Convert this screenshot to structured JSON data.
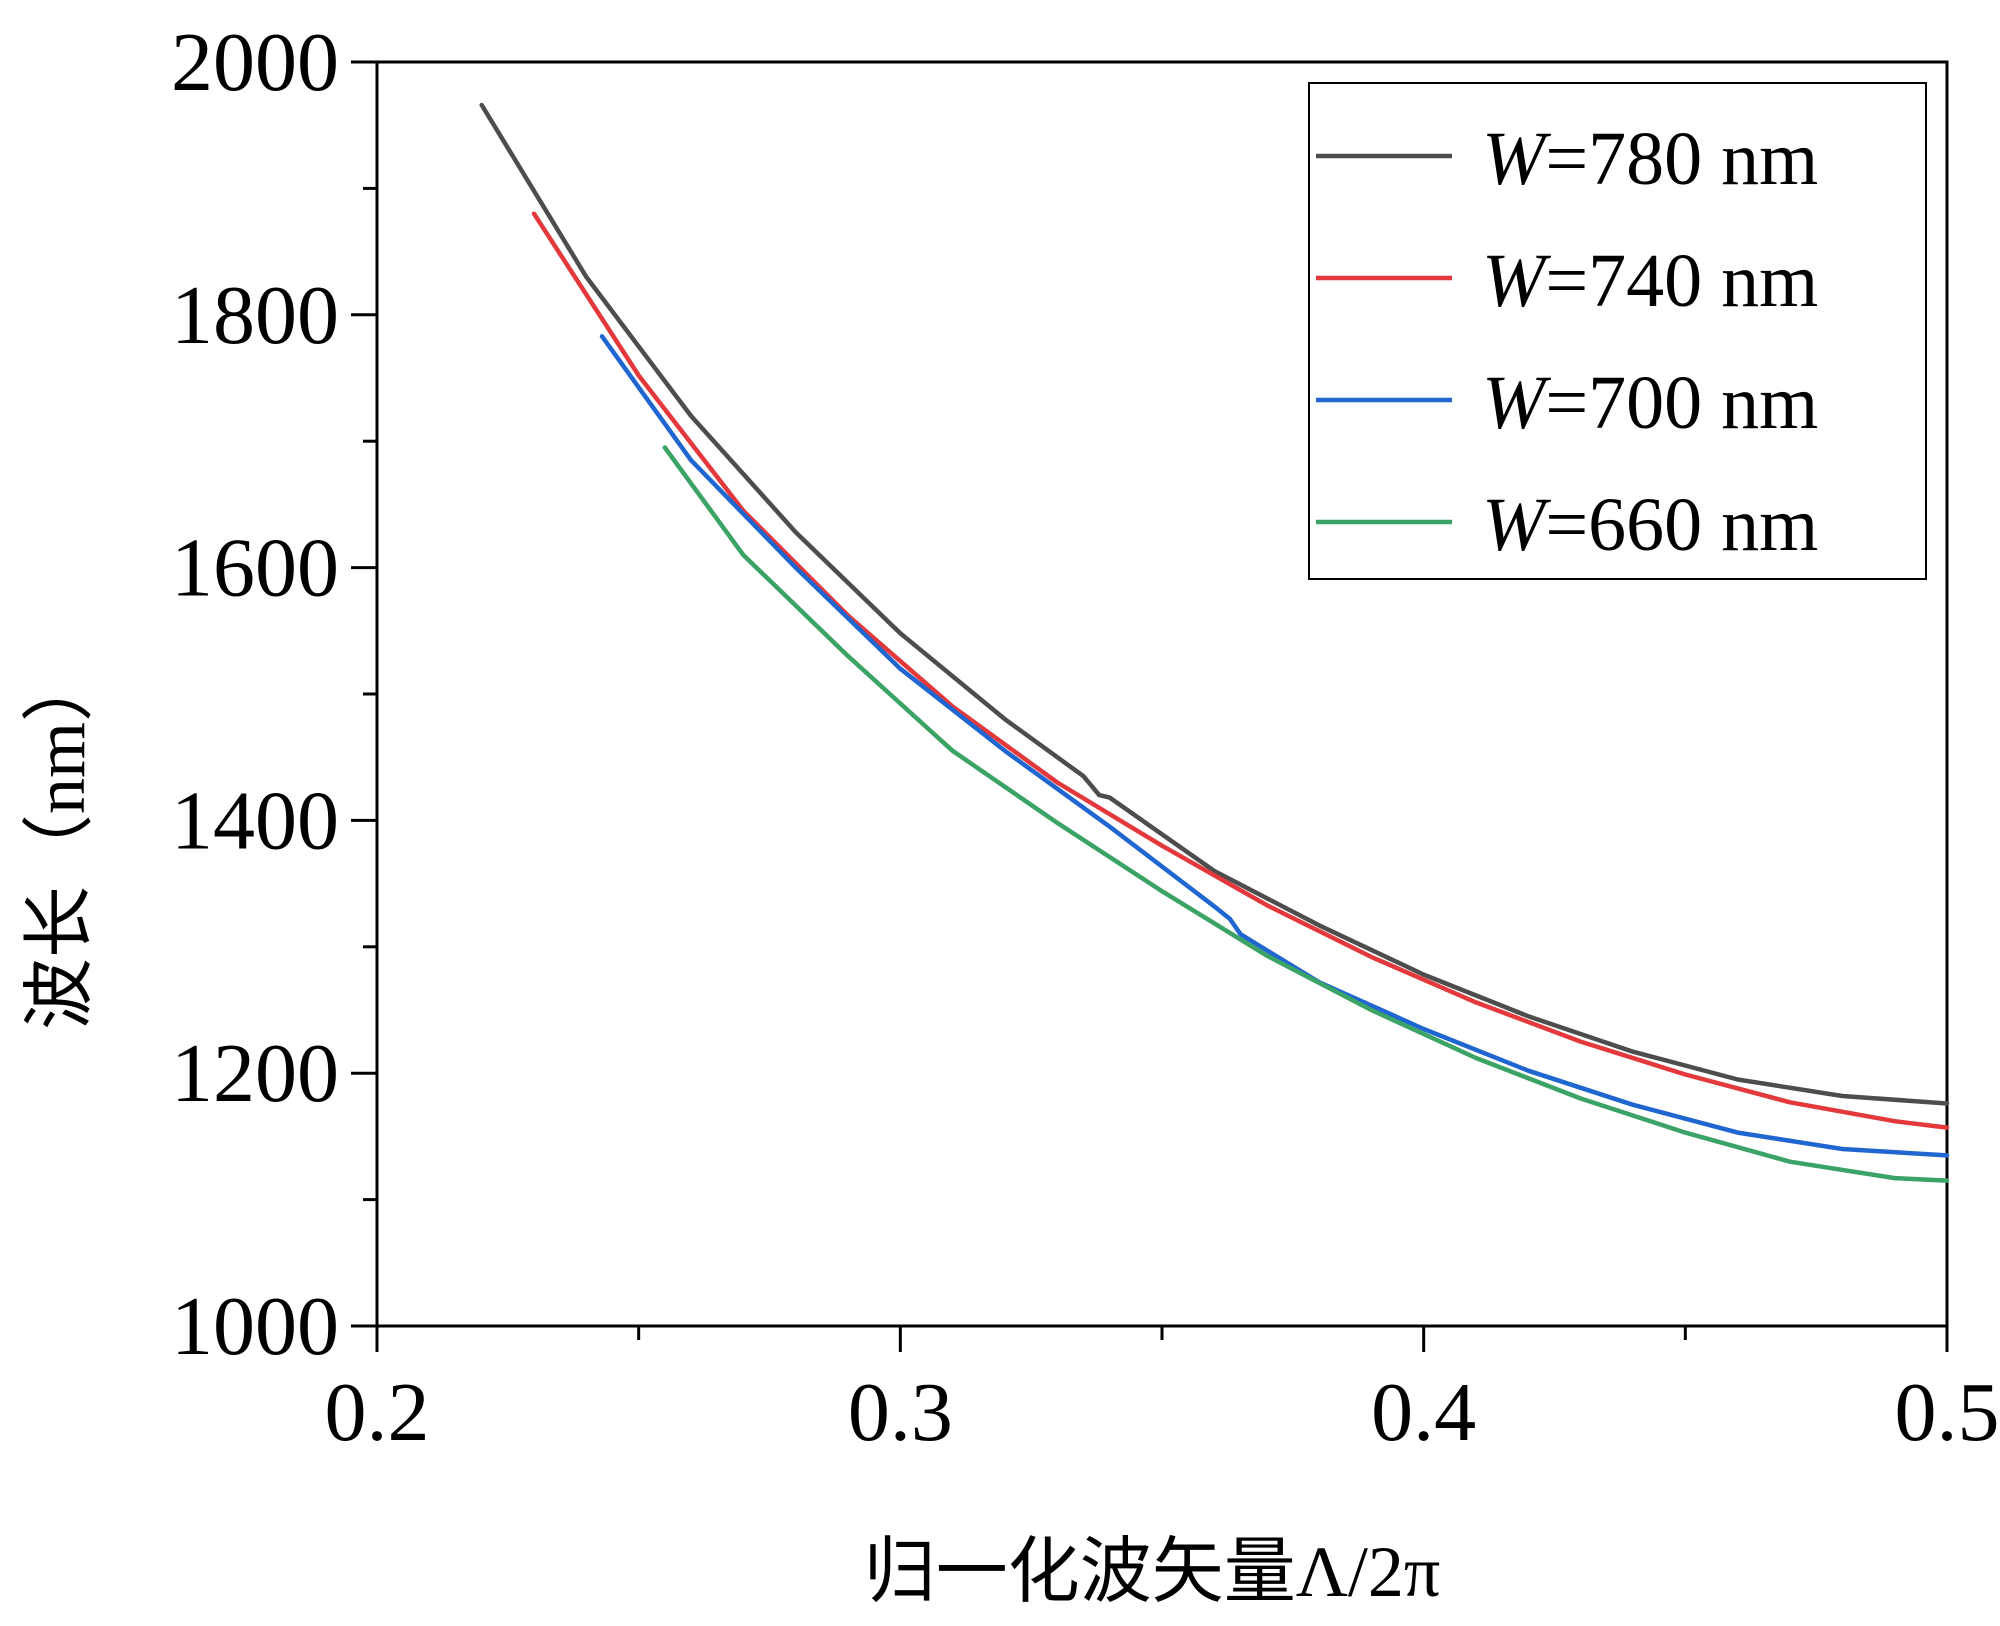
{
  "chart_data": {
    "type": "line",
    "title": "",
    "xlabel": "归一化波矢量Λ/2π",
    "ylabel": "波长（nm）",
    "xlim": [
      0.2,
      0.5
    ],
    "ylim": [
      1000,
      2000
    ],
    "xticks": [
      0.2,
      0.3,
      0.4,
      0.5
    ],
    "xtick_labels": [
      "0.2",
      "0.3",
      "0.4",
      "0.5"
    ],
    "x_minor_ticks": [
      0.25,
      0.35,
      0.45
    ],
    "yticks": [
      1000,
      1200,
      1400,
      1600,
      1800,
      2000
    ],
    "ytick_labels": [
      "1000",
      "1200",
      "1400",
      "1600",
      "1800",
      "2000"
    ],
    "y_minor_ticks": [
      1100,
      1300,
      1500,
      1700,
      1900
    ],
    "grid": false,
    "legend": {
      "placement": "top-right",
      "entries": [
        "W=780 nm",
        "W=740 nm",
        "W=700 nm",
        "W=660 nm"
      ]
    },
    "series": [
      {
        "name": "W=780 nm",
        "color": "#4d4d4d",
        "x": [
          0.22,
          0.24,
          0.26,
          0.28,
          0.3,
          0.32,
          0.335,
          0.338,
          0.34,
          0.36,
          0.38,
          0.4,
          0.42,
          0.44,
          0.46,
          0.48,
          0.5
        ],
        "y": [
          1966,
          1830,
          1720,
          1628,
          1548,
          1480,
          1435,
          1420,
          1418,
          1360,
          1317,
          1278,
          1245,
          1217,
          1195,
          1182,
          1176
        ]
      },
      {
        "name": "W=740 nm",
        "color": "#e3393c",
        "x": [
          0.23,
          0.25,
          0.27,
          0.29,
          0.31,
          0.33,
          0.35,
          0.37,
          0.39,
          0.41,
          0.43,
          0.45,
          0.47,
          0.49,
          0.5
        ],
        "y": [
          1880,
          1752,
          1645,
          1562,
          1490,
          1430,
          1380,
          1333,
          1292,
          1256,
          1225,
          1199,
          1177,
          1162,
          1157
        ]
      },
      {
        "name": "W=700 nm",
        "color": "#1f66d1",
        "x": [
          0.243,
          0.26,
          0.28,
          0.3,
          0.32,
          0.34,
          0.36,
          0.363,
          0.365,
          0.38,
          0.4,
          0.42,
          0.44,
          0.46,
          0.48,
          0.5
        ],
        "y": [
          1783,
          1685,
          1600,
          1520,
          1455,
          1395,
          1332,
          1322,
          1310,
          1272,
          1235,
          1202,
          1175,
          1153,
          1140,
          1135
        ]
      },
      {
        "name": "W=660 nm",
        "color": "#3aa365",
        "x": [
          0.255,
          0.27,
          0.29,
          0.31,
          0.33,
          0.35,
          0.37,
          0.39,
          0.41,
          0.43,
          0.45,
          0.47,
          0.49,
          0.5
        ],
        "y": [
          1695,
          1610,
          1530,
          1455,
          1398,
          1344,
          1293,
          1250,
          1212,
          1180,
          1153,
          1130,
          1117,
          1115
        ]
      }
    ]
  }
}
